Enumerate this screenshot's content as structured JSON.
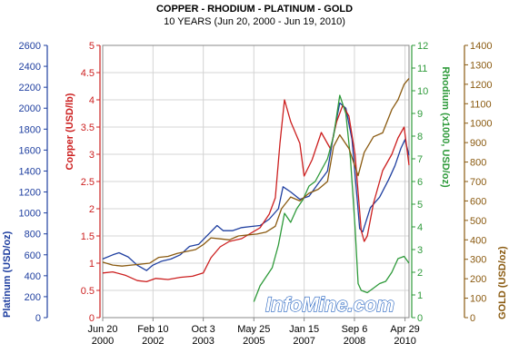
{
  "chart_data": {
    "type": "line",
    "title": "COPPER - RHODIUM - PLATINUM - GOLD",
    "subtitle": "10 YEARS (Jun 20, 2000 - Jun 19, 2010)",
    "watermark": "InfoMine.com",
    "x_ticks": [
      {
        "line1": "Jun 20",
        "line2": "2000",
        "t": 2000.47
      },
      {
        "line1": "Feb 10",
        "line2": "2002",
        "t": 2002.11
      },
      {
        "line1": "Oct 3",
        "line2": "2003",
        "t": 2003.75
      },
      {
        "line1": "May 25",
        "line2": "2005",
        "t": 2005.4
      },
      {
        "line1": "Jan 15",
        "line2": "2007",
        "t": 2007.04
      },
      {
        "line1": "Sep 6",
        "line2": "2008",
        "t": 2008.68
      },
      {
        "line1": "Apr 29",
        "line2": "2010",
        "t": 2010.33
      }
    ],
    "xlim": [
      2000.47,
      2010.46
    ],
    "axes": {
      "platinum": {
        "label": "Platinum (USD/oz)",
        "color": "#1f3fa0",
        "ylim": [
          0,
          2600
        ],
        "ticks": [
          "0",
          "200",
          "400",
          "600",
          "800",
          "1000",
          "1200",
          "1400",
          "1600",
          "1800",
          "2000",
          "2200",
          "2400",
          "2600"
        ]
      },
      "copper": {
        "label": "Copper (USD/lb)",
        "color": "#cc1f1f",
        "ylim": [
          0,
          5
        ],
        "ticks": [
          "0",
          "0.5",
          "1",
          "1.5",
          "2",
          "2.5",
          "3",
          "3.5",
          "4",
          "4.5",
          "5"
        ]
      },
      "rhodium": {
        "label": "Rhodium (x1000, USD/oz)",
        "color": "#2e9a3a",
        "ylim": [
          0,
          12
        ],
        "ticks": [
          "0",
          "1",
          "2",
          "3",
          "4",
          "5",
          "6",
          "7",
          "8",
          "9",
          "10",
          "11",
          "12"
        ]
      },
      "gold": {
        "label": "GOLD (USD/oz)",
        "color": "#8a5a10",
        "ylim": [
          0,
          1400
        ],
        "ticks": [
          "0",
          "100",
          "200",
          "300",
          "400",
          "500",
          "600",
          "700",
          "800",
          "900",
          "1000",
          "1100",
          "1200",
          "1300",
          "1400"
        ]
      }
    },
    "series": [
      {
        "name": "Platinum",
        "axis": "platinum",
        "color": "#1f3fa0",
        "x": [
          2000.47,
          2000.8,
          2001.0,
          2001.3,
          2001.6,
          2001.9,
          2002.1,
          2002.4,
          2002.7,
          2003.0,
          2003.3,
          2003.6,
          2003.9,
          2004.2,
          2004.4,
          2004.7,
          2005.0,
          2005.3,
          2005.6,
          2005.9,
          2006.2,
          2006.35,
          2006.6,
          2006.9,
          2007.2,
          2007.5,
          2007.8,
          2008.0,
          2008.2,
          2008.4,
          2008.6,
          2008.75,
          2008.85,
          2008.95,
          2009.2,
          2009.5,
          2009.8,
          2010.0,
          2010.2,
          2010.33,
          2010.46
        ],
        "values": [
          560,
          600,
          620,
          580,
          500,
          450,
          500,
          540,
          560,
          600,
          680,
          700,
          790,
          880,
          830,
          830,
          860,
          870,
          880,
          940,
          1040,
          1250,
          1200,
          1130,
          1160,
          1280,
          1400,
          1750,
          2050,
          2000,
          1700,
          1200,
          850,
          820,
          1050,
          1150,
          1320,
          1450,
          1620,
          1700,
          1550
        ]
      },
      {
        "name": "Copper",
        "axis": "copper",
        "color": "#cc1f1f",
        "x": [
          2000.47,
          2000.8,
          2001.2,
          2001.6,
          2001.9,
          2002.2,
          2002.6,
          2003.0,
          2003.4,
          2003.75,
          2004.0,
          2004.3,
          2004.6,
          2005.0,
          2005.3,
          2005.6,
          2005.9,
          2006.1,
          2006.25,
          2006.4,
          2006.6,
          2006.9,
          2007.04,
          2007.3,
          2007.6,
          2007.9,
          2008.1,
          2008.3,
          2008.5,
          2008.7,
          2008.9,
          2009.0,
          2009.1,
          2009.3,
          2009.6,
          2009.9,
          2010.1,
          2010.3,
          2010.46
        ],
        "values": [
          0.82,
          0.84,
          0.78,
          0.68,
          0.66,
          0.72,
          0.7,
          0.74,
          0.76,
          0.82,
          1.1,
          1.3,
          1.4,
          1.45,
          1.55,
          1.65,
          1.9,
          2.2,
          3.2,
          4.0,
          3.6,
          3.2,
          2.6,
          2.9,
          3.4,
          3.1,
          3.6,
          3.9,
          3.7,
          3.0,
          1.6,
          1.4,
          1.5,
          2.1,
          2.7,
          3.0,
          3.3,
          3.5,
          2.8
        ]
      },
      {
        "name": "Rhodium",
        "axis": "rhodium",
        "color": "#2e9a3a",
        "x": [
          2005.4,
          2005.6,
          2005.8,
          2006.0,
          2006.2,
          2006.4,
          2006.6,
          2006.8,
          2007.0,
          2007.2,
          2007.4,
          2007.6,
          2007.8,
          2008.0,
          2008.2,
          2008.4,
          2008.55,
          2008.7,
          2008.8,
          2008.9,
          2009.1,
          2009.3,
          2009.5,
          2009.7,
          2009.9,
          2010.1,
          2010.3,
          2010.46
        ],
        "values": [
          0.7,
          1.4,
          1.8,
          2.2,
          3.2,
          4.6,
          4.2,
          4.8,
          5.2,
          5.8,
          6.0,
          6.5,
          7.0,
          8.0,
          9.8,
          9.0,
          7.0,
          4.0,
          1.5,
          1.2,
          1.1,
          1.3,
          1.5,
          1.6,
          2.0,
          2.6,
          2.7,
          2.4
        ]
      },
      {
        "name": "Gold",
        "axis": "gold",
        "color": "#8a5a10",
        "x": [
          2000.47,
          2000.8,
          2001.1,
          2001.4,
          2001.7,
          2002.0,
          2002.3,
          2002.6,
          2002.9,
          2003.2,
          2003.5,
          2003.75,
          2004.0,
          2004.3,
          2004.6,
          2004.9,
          2005.2,
          2005.5,
          2005.8,
          2006.1,
          2006.3,
          2006.6,
          2006.9,
          2007.2,
          2007.5,
          2007.8,
          2008.0,
          2008.2,
          2008.5,
          2008.8,
          2009.0,
          2009.3,
          2009.6,
          2009.9,
          2010.1,
          2010.3,
          2010.46
        ],
        "values": [
          285,
          270,
          265,
          270,
          275,
          280,
          310,
          315,
          330,
          340,
          350,
          375,
          410,
          405,
          400,
          420,
          425,
          430,
          440,
          470,
          560,
          620,
          600,
          640,
          660,
          700,
          880,
          940,
          870,
          730,
          850,
          930,
          950,
          1070,
          1120,
          1200,
          1230
        ]
      }
    ]
  }
}
